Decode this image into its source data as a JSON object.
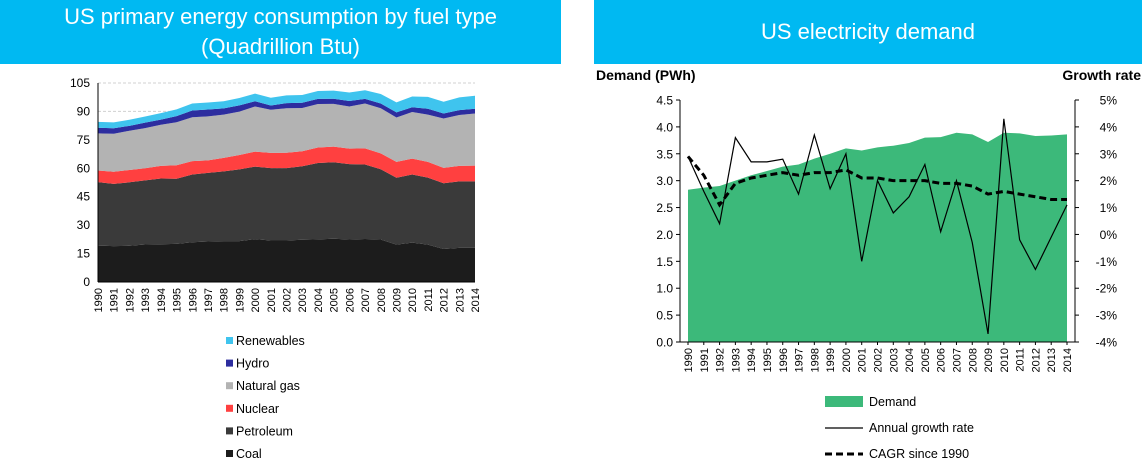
{
  "left_panel": {
    "title_line1": "US primary energy consumption by fuel type",
    "title_line2": "(Quadrillion Btu)"
  },
  "right_panel": {
    "title": "US electricity demand"
  },
  "colors": {
    "header_bg": "#00b9f2",
    "coal": "#1c1c1c",
    "petroleum": "#3a3a3a",
    "nuclear": "#ff4040",
    "natural_gas": "#b3b3b3",
    "hydro": "#2d2d9f",
    "renewables": "#3fc4ee",
    "demand": "#3cb97a"
  },
  "chart_data": [
    {
      "type": "area",
      "stacked": true,
      "title": "US primary energy consumption by fuel type (Quadrillion Btu)",
      "x": [
        "1990",
        "1991",
        "1992",
        "1993",
        "1994",
        "1995",
        "1996",
        "1997",
        "1998",
        "1999",
        "2000",
        "2001",
        "2002",
        "2003",
        "2004",
        "2005",
        "2006",
        "2007",
        "2008",
        "2009",
        "2010",
        "2011",
        "2012",
        "2013",
        "2014"
      ],
      "ylim": [
        0,
        105
      ],
      "yticks": [
        0,
        15,
        30,
        45,
        60,
        75,
        90,
        105
      ],
      "grid": true,
      "legend_order": [
        "Renewables",
        "Hydro",
        "Natural gas",
        "Nuclear",
        "Petroleum",
        "Coal"
      ],
      "series": [
        {
          "name": "Coal",
          "color_key": "coal",
          "values": [
            19.2,
            18.9,
            19.1,
            19.8,
            19.9,
            20.1,
            21.0,
            21.4,
            21.6,
            21.6,
            22.6,
            21.9,
            21.9,
            22.3,
            22.5,
            22.8,
            22.4,
            22.7,
            22.4,
            19.7,
            20.8,
            19.7,
            17.4,
            18.0,
            18.0
          ]
        },
        {
          "name": "Petroleum",
          "color_key": "petroleum",
          "values": [
            33.5,
            32.9,
            33.5,
            33.8,
            34.7,
            34.4,
            35.7,
            36.2,
            36.8,
            37.8,
            38.3,
            38.2,
            38.2,
            38.8,
            40.3,
            40.4,
            39.8,
            39.3,
            37.1,
            35.3,
            35.9,
            35.4,
            34.7,
            35.1,
            35.1
          ]
        },
        {
          "name": "Nuclear",
          "color_key": "nuclear",
          "values": [
            6.1,
            6.4,
            6.5,
            6.4,
            6.7,
            7.1,
            7.1,
            6.6,
            7.1,
            7.6,
            7.9,
            8.0,
            8.1,
            7.9,
            8.2,
            8.2,
            8.2,
            8.5,
            8.4,
            8.4,
            8.4,
            8.3,
            8.1,
            8.2,
            8.3
          ]
        },
        {
          "name": "Natural gas",
          "color_key": "natural_gas",
          "values": [
            19.6,
            20.0,
            20.7,
            21.2,
            21.7,
            22.7,
            23.1,
            23.2,
            22.8,
            22.9,
            23.8,
            22.8,
            23.5,
            22.8,
            22.9,
            22.6,
            22.2,
            23.7,
            23.8,
            23.4,
            24.6,
            24.9,
            26.1,
            26.8,
            27.5
          ]
        },
        {
          "name": "Hydro",
          "color_key": "hydro",
          "values": [
            3.0,
            2.9,
            2.6,
            2.9,
            2.7,
            3.2,
            3.6,
            3.6,
            3.3,
            3.3,
            2.8,
            2.2,
            2.7,
            2.8,
            2.7,
            2.7,
            2.9,
            2.4,
            2.5,
            2.7,
            2.5,
            3.1,
            2.6,
            2.6,
            2.5
          ]
        },
        {
          "name": "Renewables",
          "color_key": "renewables",
          "values": [
            3.1,
            3.1,
            3.2,
            3.2,
            3.4,
            3.6,
            3.7,
            3.7,
            3.8,
            3.9,
            4.0,
            4.1,
            4.1,
            4.1,
            4.2,
            4.3,
            4.5,
            4.6,
            5.0,
            5.3,
            5.7,
            6.3,
            6.2,
            6.7,
            6.9
          ]
        }
      ]
    },
    {
      "type": "line",
      "title": "US electricity demand",
      "x": [
        "1990",
        "1991",
        "1992",
        "1993",
        "1994",
        "1995",
        "1996",
        "1997",
        "1998",
        "1999",
        "2000",
        "2001",
        "2002",
        "2003",
        "2004",
        "2005",
        "2006",
        "2007",
        "2008",
        "2009",
        "2010",
        "2011",
        "2012",
        "2013",
        "2014"
      ],
      "ylabel": "Demand (PWh)",
      "y2label": "Growth rate",
      "ylim": [
        0.0,
        4.5
      ],
      "yticks": [
        "0.0",
        "0.5",
        "1.0",
        "1.5",
        "2.0",
        "2.5",
        "3.0",
        "3.5",
        "4.0",
        "4.5"
      ],
      "y2lim": [
        -4,
        5
      ],
      "y2ticks": [
        "-4%",
        "-3%",
        "-2%",
        "-1%",
        "0%",
        "1%",
        "2%",
        "3%",
        "4%",
        "5%"
      ],
      "series": [
        {
          "name": "Demand",
          "kind": "area",
          "axis": "left",
          "color_key": "demand",
          "values": [
            2.83,
            2.87,
            2.9,
            3.0,
            3.1,
            3.18,
            3.26,
            3.3,
            3.41,
            3.5,
            3.6,
            3.56,
            3.62,
            3.65,
            3.7,
            3.8,
            3.81,
            3.89,
            3.86,
            3.72,
            3.89,
            3.88,
            3.83,
            3.84,
            3.86
          ]
        },
        {
          "name": "Annual growth rate",
          "kind": "line",
          "axis": "right",
          "values": [
            2.9,
            1.6,
            0.4,
            3.6,
            2.7,
            2.7,
            2.8,
            1.5,
            3.7,
            1.7,
            3.0,
            -1.0,
            2.0,
            0.8,
            1.4,
            2.6,
            0.1,
            2.0,
            -0.3,
            -3.7,
            4.3,
            -0.2,
            -1.3,
            -0.1,
            1.1
          ]
        },
        {
          "name": "CAGR since 1990",
          "kind": "dashed",
          "axis": "right",
          "values": [
            2.9,
            2.2,
            1.1,
            1.9,
            2.1,
            2.2,
            2.3,
            2.2,
            2.3,
            2.3,
            2.4,
            2.1,
            2.1,
            2.0,
            2.0,
            2.0,
            1.9,
            1.9,
            1.8,
            1.5,
            1.6,
            1.5,
            1.4,
            1.3,
            1.3
          ]
        }
      ]
    }
  ]
}
